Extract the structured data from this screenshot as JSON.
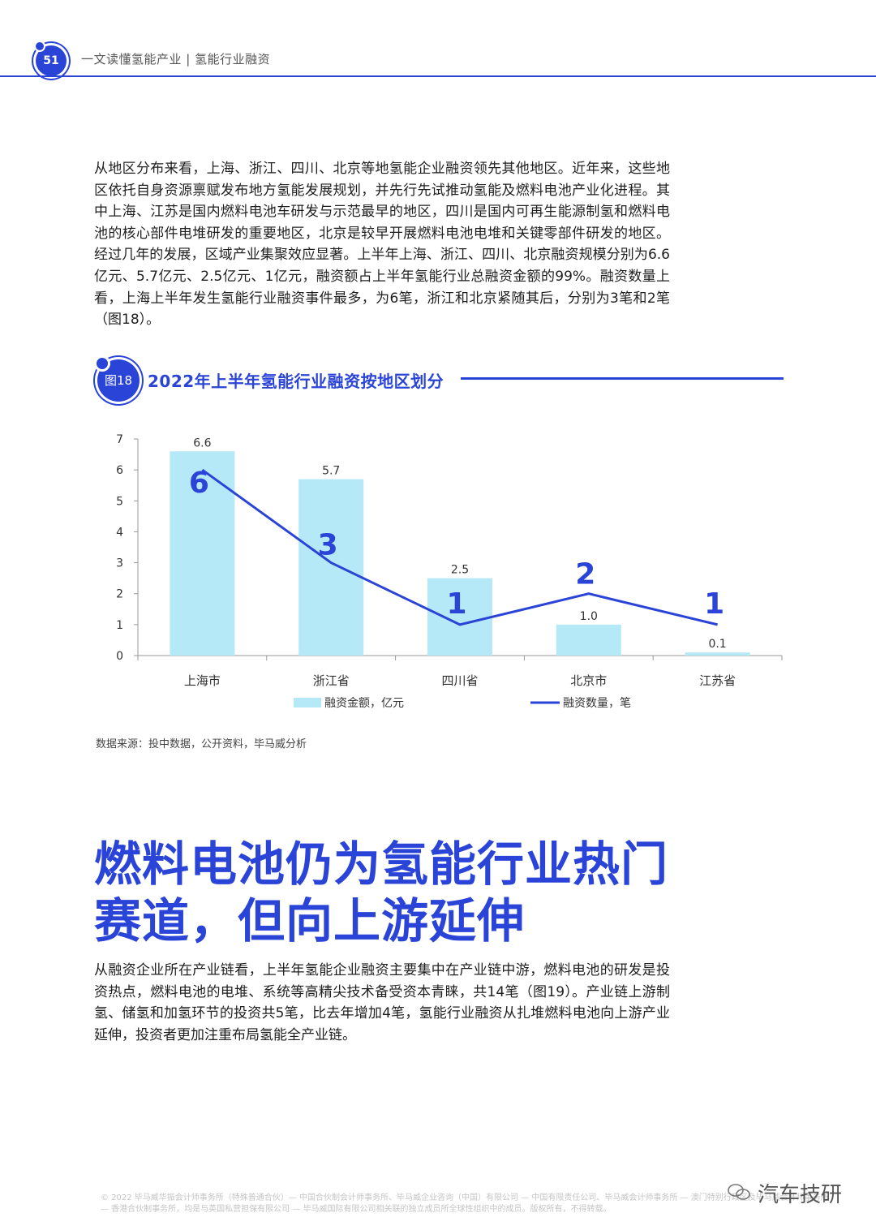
{
  "header": {
    "page_number": "51",
    "title": "一文读懂氢能产业 | 氢能行业融资"
  },
  "paragraphs": {
    "p1": "从地区分布来看，上海、浙江、四川、北京等地氢能企业融资领先其他地区。近年来，这些地区依托自身资源禀赋发布地方氢能发展规划，并先行先试推动氢能及燃料电池产业化进程。其中上海、江苏是国内燃料电池车研发与示范最早的地区，四川是国内可再生能源制氢和燃料电池的核心部件电堆研发的重要地区，北京是较早开展燃料电池电堆和关键零部件研发的地区。经过几年的发展，区域产业集聚效应显著。上半年上海、浙江、四川、北京融资规模分别为6.6亿元、5.7亿元、2.5亿元、1亿元，融资额占上半年氢能行业总融资金额的99%。融资数量上看，上海上半年发生氢能行业融资事件最多，为6笔，浙江和北京紧随其后，分别为3笔和2笔（图18）。",
    "p2": "从融资企业所在产业链看，上半年氢能企业融资主要集中在产业链中游，燃料电池的研发是投资热点，燃料电池的电堆、系统等高精尖技术备受资本青睐，共14笔（图19）。产业链上游制氢、储氢和加氢环节的投资共5笔，比去年增加4笔，氢能行业融资从扎堆燃料电池向上游产业延伸，投资者更加注重布局氢能全产业链。"
  },
  "figure": {
    "label": "图18",
    "title": "2022年上半年氢能行业融资按地区划分"
  },
  "chart_data": {
    "type": "bar",
    "categories": [
      "上海市",
      "浙江省",
      "四川省",
      "北京市",
      "江苏省"
    ],
    "series": [
      {
        "name": "融资金额，亿元",
        "kind": "bar",
        "values": [
          6.6,
          5.7,
          2.5,
          1.0,
          0.1
        ],
        "labels": [
          "6.6",
          "5.7",
          "2.5",
          "1.0",
          "0.1"
        ],
        "color": "#b5e9f7"
      },
      {
        "name": "融资数量，笔",
        "kind": "line",
        "values": [
          6,
          3,
          1,
          2,
          1
        ],
        "labels": [
          "6",
          "3",
          "1",
          "2",
          "1"
        ],
        "color": "#2a44d8"
      }
    ],
    "ylim": [
      0,
      7
    ],
    "yticks": [
      "0",
      "1",
      "2",
      "3",
      "4",
      "5",
      "6",
      "7"
    ],
    "grid": false,
    "legend_position": "bottom"
  },
  "source": "数据来源：投中数据，公开资料，毕马威分析",
  "headline": {
    "line1": "燃料电池仍为氢能行业热门",
    "line2": "赛道，但向上游延伸"
  },
  "footer": "© 2022 毕马威华振会计师事务所（特殊普通合伙）— 中国合伙制会计师事务所、毕马威企业咨询（中国）有限公司 — 中国有限责任公司、毕马威会计师事务所 — 澳门特别行政区及毕马威会计师事务所 — 香港合伙制事务所，均是与英国私营担保有限公司 — 毕马威国际有限公司相关联的独立成员所全球性组织中的成员。版权所有，不得转载。",
  "watermark": "汽车技研"
}
